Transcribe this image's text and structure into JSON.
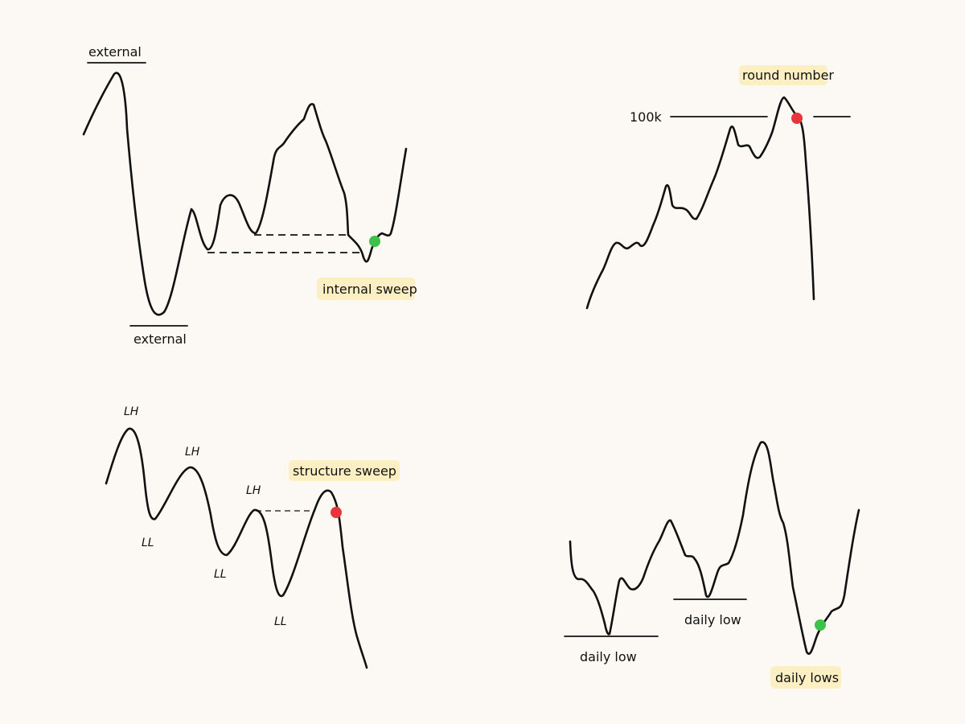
{
  "panel_internal": {
    "label_top": "external",
    "label_bottom": "external",
    "label_sweep": "internal sweep",
    "dot_color": "#3ec14a"
  },
  "panel_round": {
    "label_number": "100k",
    "label_title": "round number",
    "dot_color": "#e8343c"
  },
  "panel_structure": {
    "label_lh_1": "LH",
    "label_lh_2": "LH",
    "label_lh_3": "LH",
    "label_ll_1": "LL",
    "label_ll_2": "LL",
    "label_ll_3": "LL",
    "label_sweep": "structure sweep",
    "dot_color": "#e8343c"
  },
  "panel_daily": {
    "label_low_1": "daily low",
    "label_low_2": "daily low",
    "label_sweep": "daily lows",
    "dot_color": "#3ec14a"
  },
  "colors": {
    "background": "#fcf8f3",
    "line": "#111111",
    "highlight": "#fbefc3"
  }
}
